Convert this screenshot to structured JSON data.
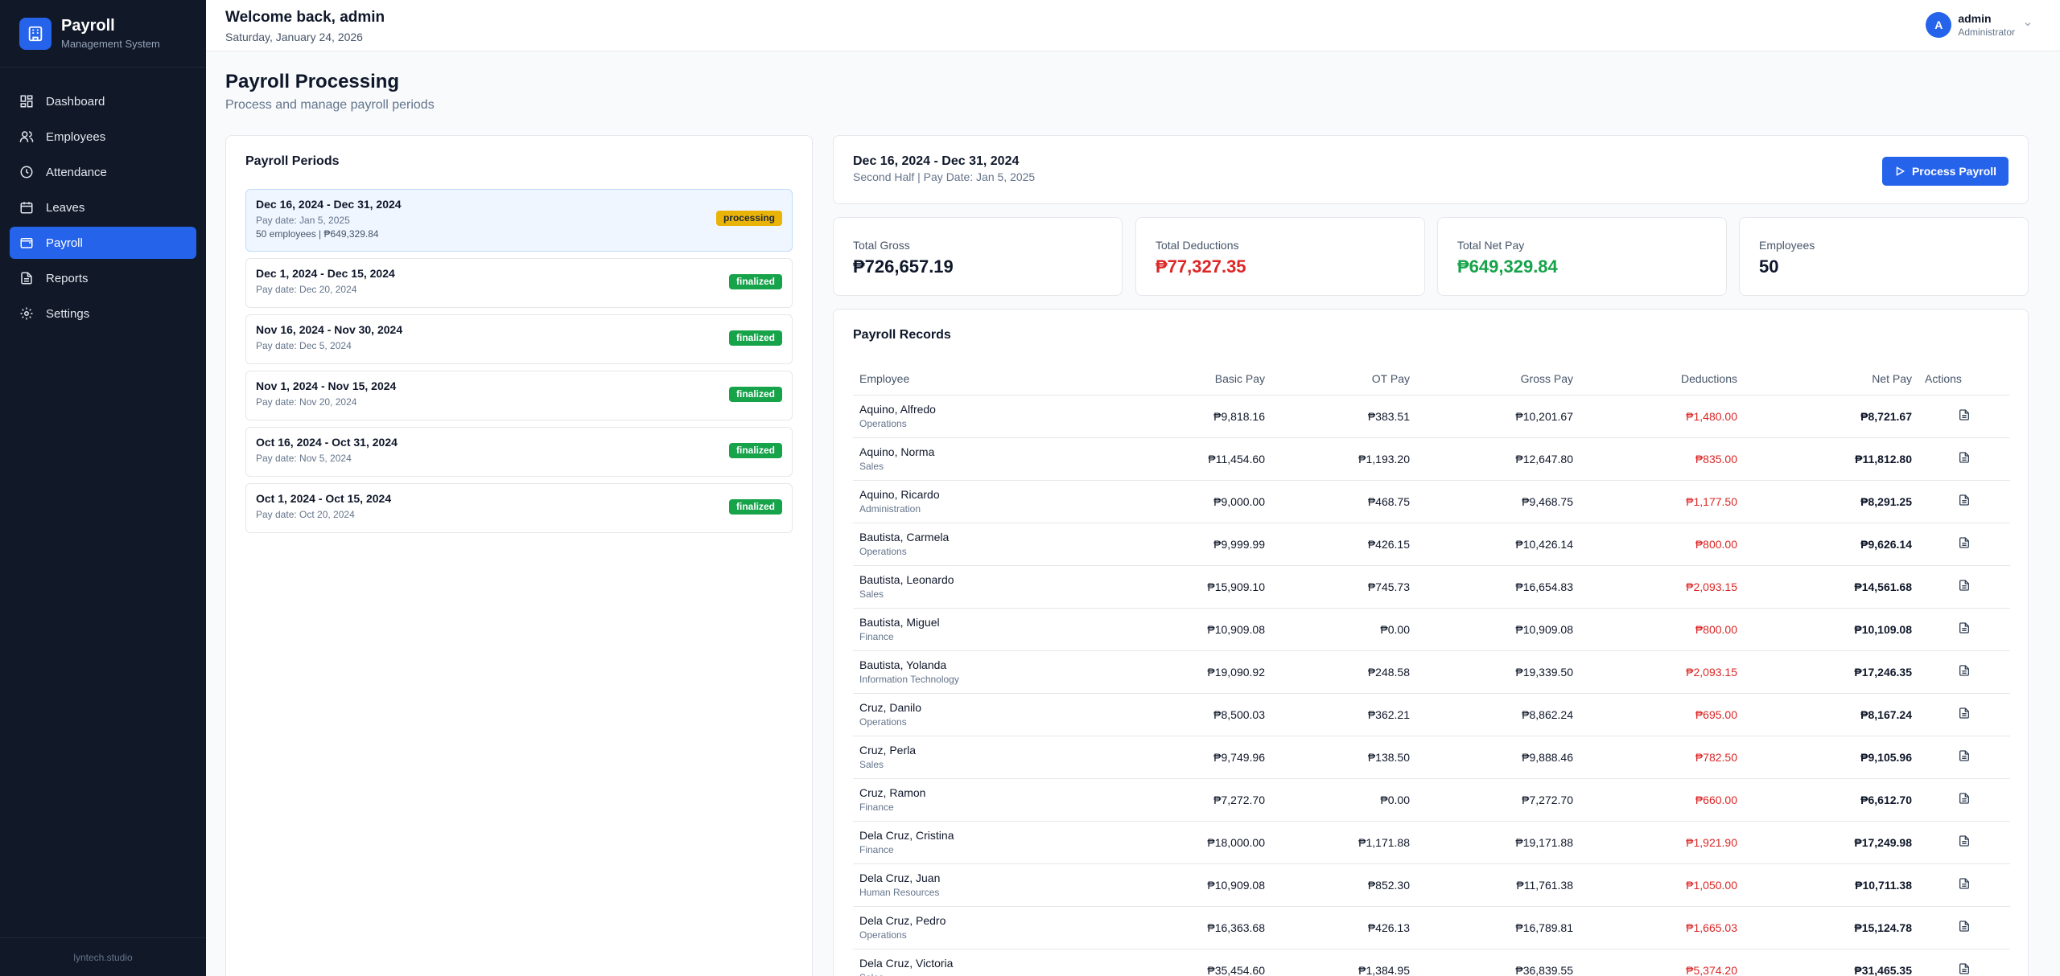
{
  "brand": {
    "title": "Payroll",
    "subtitle": "Management System"
  },
  "nav": [
    {
      "label": "Dashboard",
      "icon": "dashboard-icon"
    },
    {
      "label": "Employees",
      "icon": "users-icon"
    },
    {
      "label": "Attendance",
      "icon": "clock-icon"
    },
    {
      "label": "Leaves",
      "icon": "calendar-icon"
    },
    {
      "label": "Payroll",
      "icon": "wallet-icon",
      "active": true
    },
    {
      "label": "Reports",
      "icon": "file-icon"
    },
    {
      "label": "Settings",
      "icon": "gear-icon"
    }
  ],
  "footer": "lyntech.studio",
  "header": {
    "welcome": "Welcome back, admin",
    "date": "Saturday, January 24, 2026",
    "user": {
      "initial": "A",
      "name": "admin",
      "role": "Administrator"
    }
  },
  "page": {
    "title": "Payroll Processing",
    "subtitle": "Process and manage payroll periods"
  },
  "periods": {
    "title": "Payroll Periods",
    "items": [
      {
        "name": "Dec 16, 2024 - Dec 31, 2024",
        "pay_date": "Pay date: Jan 5, 2025",
        "extra": "50 employees | ₱649,329.84",
        "status": "processing"
      },
      {
        "name": "Dec 1, 2024 - Dec 15, 2024",
        "pay_date": "Pay date: Dec 20, 2024",
        "status": "finalized"
      },
      {
        "name": "Nov 16, 2024 - Nov 30, 2024",
        "pay_date": "Pay date: Dec 5, 2024",
        "status": "finalized"
      },
      {
        "name": "Nov 1, 2024 - Nov 15, 2024",
        "pay_date": "Pay date: Nov 20, 2024",
        "status": "finalized"
      },
      {
        "name": "Oct 16, 2024 - Oct 31, 2024",
        "pay_date": "Pay date: Nov 5, 2024",
        "status": "finalized"
      },
      {
        "name": "Oct 1, 2024 - Oct 15, 2024",
        "pay_date": "Pay date: Oct 20, 2024",
        "status": "finalized"
      }
    ]
  },
  "summary": {
    "title": "Dec 16, 2024 - Dec 31, 2024",
    "subtitle": "Second Half | Pay Date: Jan 5, 2025",
    "button": "Process Payroll"
  },
  "stats": [
    {
      "label": "Total Gross",
      "value": "₱726,657.19",
      "color": "#0f172a"
    },
    {
      "label": "Total Deductions",
      "value": "₱77,327.35",
      "color": "#dc2626"
    },
    {
      "label": "Total Net Pay",
      "value": "₱649,329.84",
      "color": "#16a34a"
    },
    {
      "label": "Employees",
      "value": "50",
      "color": "#0f172a"
    }
  ],
  "records": {
    "title": "Payroll Records",
    "columns": [
      "Employee",
      "Basic Pay",
      "OT Pay",
      "Gross Pay",
      "Deductions",
      "Net Pay",
      "Actions"
    ],
    "rows": [
      {
        "name": "Aquino, Alfredo",
        "dept": "Operations",
        "basic": "₱9,818.16",
        "ot": "₱383.51",
        "gross": "₱10,201.67",
        "ded": "₱1,480.00",
        "net": "₱8,721.67"
      },
      {
        "name": "Aquino, Norma",
        "dept": "Sales",
        "basic": "₱11,454.60",
        "ot": "₱1,193.20",
        "gross": "₱12,647.80",
        "ded": "₱835.00",
        "net": "₱11,812.80"
      },
      {
        "name": "Aquino, Ricardo",
        "dept": "Administration",
        "basic": "₱9,000.00",
        "ot": "₱468.75",
        "gross": "₱9,468.75",
        "ded": "₱1,177.50",
        "net": "₱8,291.25"
      },
      {
        "name": "Bautista, Carmela",
        "dept": "Operations",
        "basic": "₱9,999.99",
        "ot": "₱426.15",
        "gross": "₱10,426.14",
        "ded": "₱800.00",
        "net": "₱9,626.14"
      },
      {
        "name": "Bautista, Leonardo",
        "dept": "Sales",
        "basic": "₱15,909.10",
        "ot": "₱745.73",
        "gross": "₱16,654.83",
        "ded": "₱2,093.15",
        "net": "₱14,561.68"
      },
      {
        "name": "Bautista, Miguel",
        "dept": "Finance",
        "basic": "₱10,909.08",
        "ot": "₱0.00",
        "gross": "₱10,909.08",
        "ded": "₱800.00",
        "net": "₱10,109.08"
      },
      {
        "name": "Bautista, Yolanda",
        "dept": "Information Technology",
        "basic": "₱19,090.92",
        "ot": "₱248.58",
        "gross": "₱19,339.50",
        "ded": "₱2,093.15",
        "net": "₱17,246.35"
      },
      {
        "name": "Cruz, Danilo",
        "dept": "Operations",
        "basic": "₱8,500.03",
        "ot": "₱362.21",
        "gross": "₱8,862.24",
        "ded": "₱695.00",
        "net": "₱8,167.24"
      },
      {
        "name": "Cruz, Perla",
        "dept": "Sales",
        "basic": "₱9,749.96",
        "ot": "₱138.50",
        "gross": "₱9,888.46",
        "ded": "₱782.50",
        "net": "₱9,105.96"
      },
      {
        "name": "Cruz, Ramon",
        "dept": "Finance",
        "basic": "₱7,272.70",
        "ot": "₱0.00",
        "gross": "₱7,272.70",
        "ded": "₱660.00",
        "net": "₱6,612.70"
      },
      {
        "name": "Dela Cruz, Cristina",
        "dept": "Finance",
        "basic": "₱18,000.00",
        "ot": "₱1,171.88",
        "gross": "₱19,171.88",
        "ded": "₱1,921.90",
        "net": "₱17,249.98"
      },
      {
        "name": "Dela Cruz, Juan",
        "dept": "Human Resources",
        "basic": "₱10,909.08",
        "ot": "₱852.30",
        "gross": "₱11,761.38",
        "ded": "₱1,050.00",
        "net": "₱10,711.38"
      },
      {
        "name": "Dela Cruz, Pedro",
        "dept": "Operations",
        "basic": "₱16,363.68",
        "ot": "₱426.13",
        "gross": "₱16,789.81",
        "ded": "₱1,665.03",
        "net": "₱15,124.78"
      },
      {
        "name": "Dela Cruz, Victoria",
        "dept": "Sales",
        "basic": "₱35,454.60",
        "ot": "₱1,384.95",
        "gross": "₱36,839.55",
        "ded": "₱5,374.20",
        "net": "₱31,465.35"
      }
    ]
  }
}
